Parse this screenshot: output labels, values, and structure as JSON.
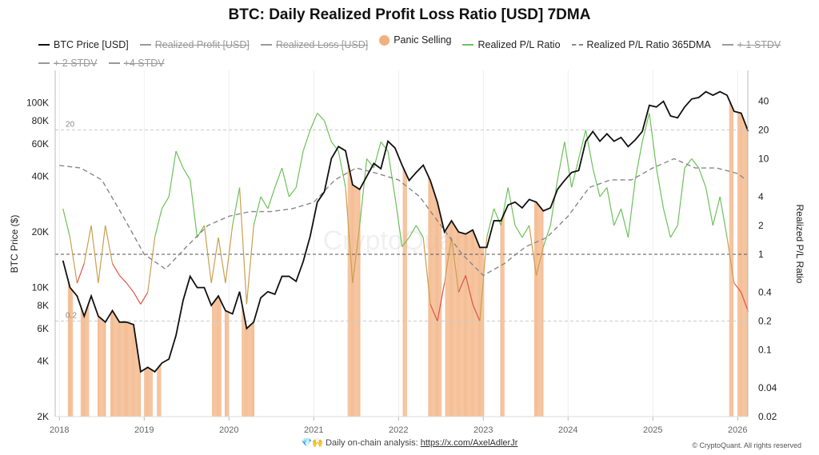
{
  "title": "BTC: Daily Realized Profit Loss Ratio [USD] 7DMA",
  "legend": [
    {
      "label": "BTC Price [USD]",
      "color": "#111111",
      "style": "solid",
      "active": true
    },
    {
      "label": "Realized Profit [USD]",
      "color": "#999999",
      "style": "solid",
      "active": false
    },
    {
      "label": "Realized Loss [USD]",
      "color": "#999999",
      "style": "solid",
      "active": false
    },
    {
      "label": "Panic Selling",
      "color": "#f2b07f",
      "style": "dot",
      "active": true
    },
    {
      "label": "Realized P/L Ratio",
      "color": "#6cc25a",
      "style": "solid",
      "active": true
    },
    {
      "label": "Realized P/L Ratio 365DMA",
      "color": "#888888",
      "style": "dashed",
      "active": true
    },
    {
      "label": "+ 1 STDV",
      "color": "#999999",
      "style": "solid",
      "active": false
    },
    {
      "label": "+ 2 STDV",
      "color": "#999999",
      "style": "solid",
      "active": false
    },
    {
      "label": "+4 STDV",
      "color": "#999999",
      "style": "solid",
      "active": false
    }
  ],
  "footer": {
    "icons": [
      "gem-icon",
      "raised-hands-icon"
    ],
    "text": "Daily on-chain analysis: ",
    "link": "https://x.com/AxelAdlerJr",
    "copyright": "© CryptoQuant. All rights reserved",
    "watermark": "CryptoQuant"
  },
  "chart_data": {
    "type": "line",
    "title": "BTC: Daily Realized Profit Loss Ratio [USD] 7DMA",
    "ylabel_left": "BTC Price ($)",
    "ylabel_right": "Realized P/L Ratio",
    "xlim": [
      2017.95,
      2026.12
    ],
    "ylim_left": [
      2000,
      150000
    ],
    "scale_left": "log",
    "ylim_right": [
      0.02,
      84
    ],
    "scale_right": "log",
    "x_ticks": [
      "2018",
      "2019",
      "2020",
      "2021",
      "2022",
      "2023",
      "2024",
      "2025",
      "2026"
    ],
    "y_ticks_left": [
      {
        "v": 2000,
        "l": "2K"
      },
      {
        "v": 4000,
        "l": "4K"
      },
      {
        "v": 6000,
        "l": "6K"
      },
      {
        "v": 8000,
        "l": "8K"
      },
      {
        "v": 10000,
        "l": "10K"
      },
      {
        "v": 20000,
        "l": "20K"
      },
      {
        "v": 40000,
        "l": "40K"
      },
      {
        "v": 60000,
        "l": "60K"
      },
      {
        "v": 80000,
        "l": "80K"
      },
      {
        "v": 100000,
        "l": "100K"
      }
    ],
    "y_ticks_right": [
      {
        "v": 0.02,
        "l": "0.02"
      },
      {
        "v": 0.04,
        "l": "0.04"
      },
      {
        "v": 0.1,
        "l": "0.1"
      },
      {
        "v": 0.2,
        "l": "0.2"
      },
      {
        "v": 0.4,
        "l": "0.4"
      },
      {
        "v": 1,
        "l": "1"
      },
      {
        "v": 2,
        "l": "2"
      },
      {
        "v": 4,
        "l": "4"
      },
      {
        "v": 10,
        "l": "10"
      },
      {
        "v": 20,
        "l": "20"
      },
      {
        "v": 40,
        "l": "40"
      }
    ],
    "reference_lines": [
      {
        "value": 20,
        "label": "20"
      },
      {
        "value": 1,
        "label": ""
      },
      {
        "value": 0.2,
        "label": "0.2"
      }
    ],
    "grid": "vertical",
    "colors": {
      "price": "#111111",
      "ratio_above": "#6cc25a",
      "ratio_below": "#e0534a",
      "dma": "#888888",
      "panic": "#f2b07f"
    },
    "btc_price_monthly_start": "2018-01",
    "btc_price": [
      14000,
      10000,
      9000,
      7000,
      9000,
      7000,
      6500,
      7500,
      6500,
      6500,
      6300,
      3500,
      3700,
      3500,
      3900,
      4100,
      5500,
      8500,
      11500,
      10000,
      10000,
      8000,
      9000,
      7500,
      7200,
      9500,
      6000,
      6500,
      8800,
      9500,
      9200,
      11500,
      11500,
      10800,
      13800,
      19000,
      29000,
      33000,
      50000,
      58000,
      55000,
      36000,
      34000,
      40000,
      47000,
      44000,
      62000,
      57000,
      46000,
      38000,
      42000,
      46000,
      38000,
      29000,
      20000,
      23000,
      20000,
      19500,
      20500,
      16500,
      16500,
      23000,
      23000,
      28000,
      29000,
      27000,
      30000,
      29000,
      26000,
      27000,
      34000,
      38000,
      42000,
      43000,
      62000,
      70000,
      62000,
      68000,
      62000,
      65000,
      58000,
      63000,
      70000,
      97000,
      95000,
      102000,
      85000,
      83000,
      95000,
      105000,
      107000,
      115000,
      110000,
      115000,
      110000,
      90000,
      88000,
      70000
    ],
    "realized_pl_ratio": [
      3,
      1.5,
      0.5,
      0.8,
      2,
      0.5,
      2,
      0.8,
      0.6,
      0.5,
      0.4,
      0.3,
      0.4,
      1.5,
      3,
      4,
      12,
      8,
      6,
      1.5,
      2,
      0.5,
      1.5,
      0.5,
      2,
      5,
      0.3,
      2,
      4,
      3,
      5,
      8,
      4,
      5,
      12,
      20,
      30,
      25,
      15,
      12,
      5,
      0.5,
      2,
      10,
      8,
      15,
      12,
      4,
      1.2,
      1.5,
      2,
      1.5,
      0.3,
      0.2,
      0.5,
      1.5,
      0.4,
      0.6,
      0.3,
      0.2,
      1.5,
      3,
      2,
      5,
      2,
      1.5,
      2,
      0.6,
      1.2,
      2,
      6,
      15,
      5,
      10,
      20,
      8,
      4,
      5,
      2,
      3,
      1.5,
      6,
      15,
      30,
      8,
      3,
      1.5,
      2,
      8,
      10,
      8,
      5,
      2,
      4,
      1.5,
      0.5,
      0.4,
      0.25
    ],
    "ratio_365dma": {
      "x": [
        2018.0,
        2018.25,
        2018.5,
        2018.75,
        2019.0,
        2019.25,
        2019.5,
        2019.75,
        2020.0,
        2020.25,
        2020.5,
        2020.75,
        2021.0,
        2021.25,
        2021.5,
        2021.75,
        2022.0,
        2022.25,
        2022.5,
        2022.75,
        2023.0,
        2023.25,
        2023.5,
        2023.75,
        2024.0,
        2024.25,
        2024.5,
        2024.75,
        2025.0,
        2025.25,
        2025.5,
        2025.75,
        2026.0,
        2026.1
      ],
      "y": [
        8.5,
        8,
        6,
        2.5,
        1,
        0.7,
        1.2,
        2,
        2.5,
        2.8,
        2.8,
        3,
        3.5,
        6,
        8,
        7,
        6,
        4,
        2,
        1,
        0.6,
        0.8,
        1.2,
        1.5,
        2.5,
        5,
        6,
        6,
        8,
        10,
        8,
        8,
        7,
        6
      ]
    },
    "panic_selling_periods": [
      [
        2018.1,
        2018.15
      ],
      [
        2018.25,
        2018.35
      ],
      [
        2018.45,
        2018.55
      ],
      [
        2018.6,
        2018.95
      ],
      [
        2019.0,
        2019.1
      ],
      [
        2019.15,
        2019.2
      ],
      [
        2019.8,
        2019.9
      ],
      [
        2019.95,
        2020.0
      ],
      [
        2020.15,
        2020.3
      ],
      [
        2021.4,
        2021.55
      ],
      [
        2022.05,
        2022.1
      ],
      [
        2022.35,
        2022.5
      ],
      [
        2022.55,
        2023.0
      ],
      [
        2023.2,
        2023.25
      ],
      [
        2023.6,
        2023.7
      ],
      [
        2025.9,
        2025.95
      ],
      [
        2026.0,
        2026.12
      ]
    ]
  }
}
